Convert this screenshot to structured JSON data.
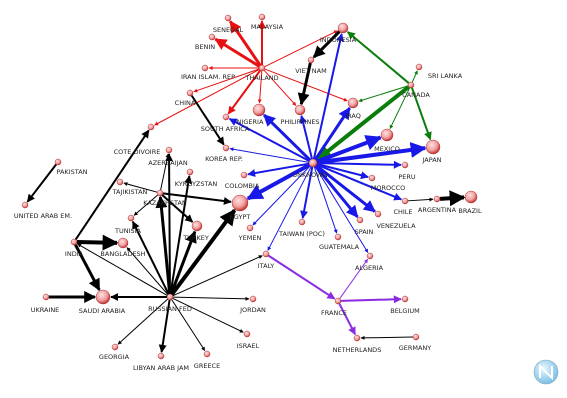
{
  "nodes": [
    {
      "label": "SENEGAL"
    },
    {
      "label": "MALAYSIA"
    },
    {
      "label": "BENIN"
    },
    {
      "label": "INDONESIA"
    },
    {
      "label": "THAILAND"
    },
    {
      "label": "IRAN ISLAM. REP"
    },
    {
      "label": "VIET NAM"
    },
    {
      "label": "SRI LANKA"
    },
    {
      "label": "CANADA"
    },
    {
      "label": "CHINA"
    },
    {
      "label": "NIGERIA"
    },
    {
      "label": "PHILIPPINES"
    },
    {
      "label": "IRAQ"
    },
    {
      "label": "SOUTH AFRICA"
    },
    {
      "label": "COTE DIVOIRE"
    },
    {
      "label": "MEXICO"
    },
    {
      "label": "JAPAN"
    },
    {
      "label": "KOREA REP."
    },
    {
      "label": "AZERBAIJAN"
    },
    {
      "label": "PAKISTAN"
    },
    {
      "label": "UNKNOWN"
    },
    {
      "label": "PERU"
    },
    {
      "label": "COLOMBIA"
    },
    {
      "label": "KYRGYZSTAN"
    },
    {
      "label": "TAJIKISTAN"
    },
    {
      "label": "MOROCCO"
    },
    {
      "label": "KAZAKHSTAN"
    },
    {
      "label": "CHILE"
    },
    {
      "label": "ARGENTINA"
    },
    {
      "label": "BRAZIL"
    },
    {
      "label": "UNITED ARAB EM."
    },
    {
      "label": "EGYPT"
    },
    {
      "label": "TUNISIA"
    },
    {
      "label": "SPAIN"
    },
    {
      "label": "VENEZUELA"
    },
    {
      "label": "TURKEY"
    },
    {
      "label": "TAIWAN (POC)"
    },
    {
      "label": "YEMEN"
    },
    {
      "label": "INDIA"
    },
    {
      "label": "BANGLADESH"
    },
    {
      "label": "GUATEMALA"
    },
    {
      "label": "ITALY"
    },
    {
      "label": "ALGERIA"
    },
    {
      "label": "UKRAINE"
    },
    {
      "label": "SAUDI ARABIA"
    },
    {
      "label": "RUSSIAN FED"
    },
    {
      "label": "FRANCE"
    },
    {
      "label": "BELGIUM"
    },
    {
      "label": "JORDAN"
    },
    {
      "label": "ISRAEL"
    },
    {
      "label": "NETHERLANDS"
    },
    {
      "label": "GERMANY"
    },
    {
      "label": "GEORGIA"
    },
    {
      "label": "LIBYAN ARAB JAM"
    },
    {
      "label": "GREECE"
    }
  ]
}
